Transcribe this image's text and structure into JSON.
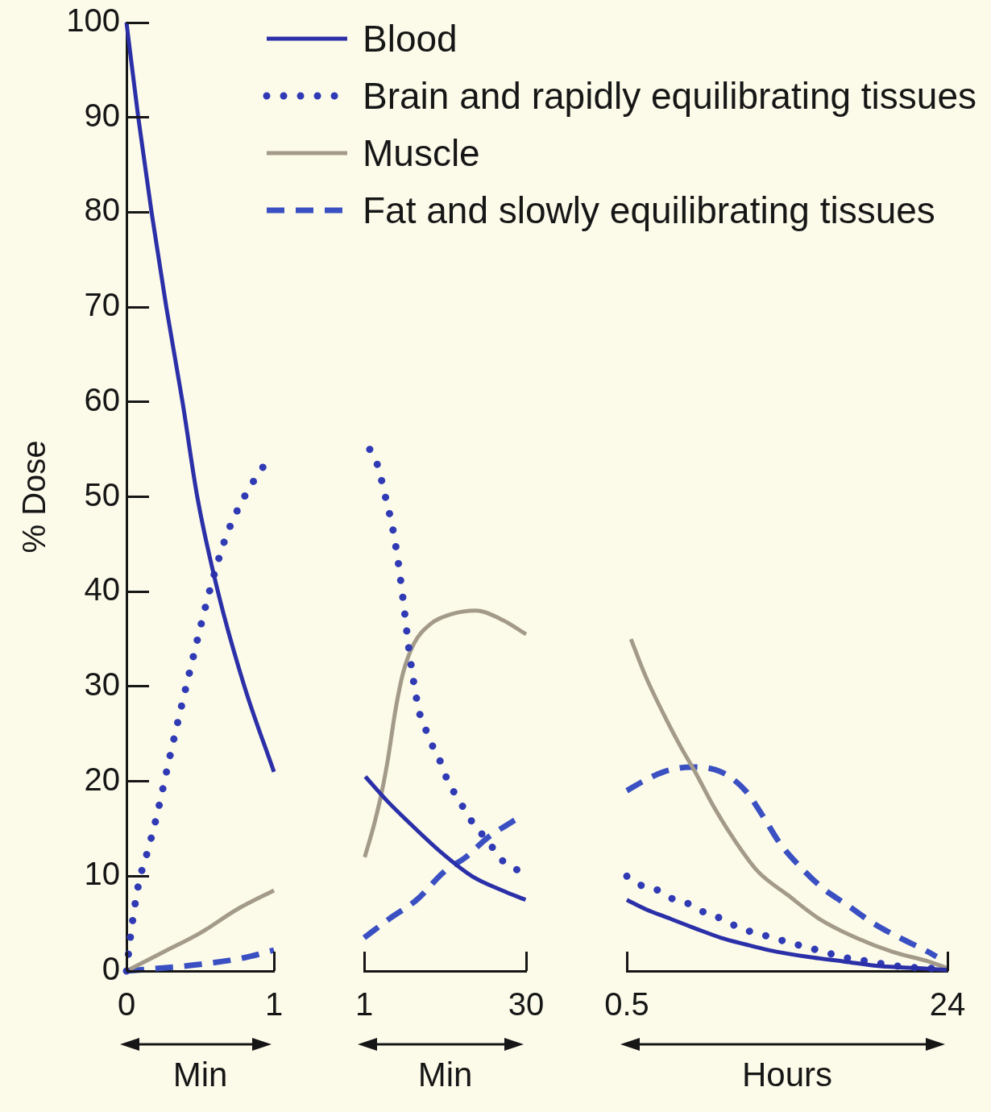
{
  "chart_data": [
    {
      "type": "line",
      "xlabel": "Min",
      "ylabel": "% Dose",
      "xlim": [
        0,
        1
      ],
      "xticks": [
        0,
        1
      ],
      "ylim": [
        0,
        100
      ],
      "yticks": [
        0,
        10,
        20,
        30,
        40,
        50,
        60,
        70,
        80,
        90,
        100
      ],
      "legend": "top right",
      "series": [
        {
          "name": "Blood",
          "color": "#2b2fa8",
          "line_style": "solid",
          "x": [
            0,
            0.08,
            0.17,
            0.27,
            0.38,
            0.48,
            0.62,
            0.8,
            1
          ],
          "values": [
            100,
            90,
            80,
            70,
            60,
            50,
            40,
            30,
            21
          ]
        },
        {
          "name": "Brain and rapidly equilibrating tissues",
          "color": "#2f3ab4",
          "line_style": "dotted",
          "x": [
            0,
            0.03,
            0.08,
            0.15,
            0.2,
            0.3,
            0.42,
            0.58,
            0.68,
            0.8,
            0.92,
            0.97
          ],
          "values": [
            0,
            4,
            9,
            13,
            16,
            23,
            31,
            41,
            46,
            50,
            53,
            54
          ]
        },
        {
          "name": "Muscle",
          "color": "#a39a8a",
          "line_style": "solid",
          "x": [
            0,
            0.25,
            0.5,
            0.75,
            1
          ],
          "values": [
            0,
            2,
            4,
            6.5,
            8.5
          ]
        },
        {
          "name": "Fat and slowly equilibrating tissues",
          "color": "#3a50c2",
          "line_style": "dashed",
          "x": [
            0,
            0.5,
            0.8,
            1
          ],
          "values": [
            0,
            0.7,
            1.4,
            2.2
          ]
        }
      ]
    },
    {
      "type": "line",
      "xlabel": "Min",
      "xlim": [
        1,
        30
      ],
      "xticks": [
        1,
        30
      ],
      "ylim": [
        0,
        100
      ],
      "tick_labels": "x",
      "series": [
        {
          "name": "Blood",
          "color": "#2b2fa8",
          "line_style": "solid",
          "x": [
            1.2,
            5,
            9.3,
            14.8,
            20.3,
            25.7,
            29.9
          ],
          "values": [
            20.5,
            18,
            15.5,
            12.5,
            10,
            8.5,
            7.5
          ]
        },
        {
          "name": "Brain and rapidly equilibrating tissues",
          "color": "#2f3ab4",
          "line_style": "dotted",
          "x": [
            2,
            3,
            4,
            5,
            6,
            7,
            8,
            9,
            10,
            11,
            12,
            13,
            14,
            15,
            16,
            18,
            20,
            22,
            24,
            26,
            28.9
          ],
          "values": [
            55,
            54,
            52,
            49.5,
            47,
            43.5,
            39,
            34,
            30,
            27,
            25.5,
            24,
            23,
            21.5,
            20,
            18,
            16,
            14.5,
            13,
            11.5,
            10.5
          ]
        },
        {
          "name": "Muscle",
          "color": "#a39a8a",
          "line_style": "solid",
          "x": [
            1.1,
            2.8,
            4.2,
            5.3,
            6.6,
            8,
            9.9,
            12.7,
            16.5,
            21,
            25.8,
            30
          ],
          "values": [
            12,
            15.5,
            19,
            22.5,
            27.5,
            31.5,
            34.5,
            36.5,
            37.6,
            38,
            37,
            35.5
          ]
        },
        {
          "name": "Fat and slowly equilibrating tissues",
          "color": "#3a50c2",
          "line_style": "dashed",
          "x": [
            1,
            5.5,
            10.4,
            15.4,
            19.2,
            23,
            28.2
          ],
          "values": [
            3.5,
            5.5,
            7.5,
            10.5,
            12,
            14,
            16
          ]
        }
      ]
    },
    {
      "type": "line",
      "xlabel": "Hours",
      "xlim": [
        0.5,
        24
      ],
      "xticks": [
        0.5,
        24
      ],
      "ylim": [
        0,
        100
      ],
      "tick_labels": "x",
      "series": [
        {
          "name": "Blood",
          "color": "#2b2fa8",
          "line_style": "solid",
          "x": [
            0.5,
            1.9,
            3.7,
            5.5,
            7.4,
            9.2,
            10.9,
            13.7,
            16.4,
            19.1,
            21.9,
            24
          ],
          "values": [
            7.5,
            6.5,
            5.5,
            4.5,
            3.5,
            2.8,
            2.2,
            1.5,
            1,
            0.5,
            0.3,
            0.1
          ]
        },
        {
          "name": "Brain and rapidly equilibrating tissues",
          "color": "#2f3ab4",
          "line_style": "dotted",
          "x": [
            0.5,
            1.6,
            2.8,
            4,
            5.2,
            6.4,
            7.5,
            8.8,
            10,
            11.2,
            12.4,
            13.7,
            15,
            16.2,
            17.4,
            18.7,
            19.9,
            21.2,
            22.6,
            24
          ],
          "values": [
            10,
            9,
            8.5,
            7.5,
            7,
            6,
            5.5,
            4.5,
            4,
            3.5,
            3,
            2.5,
            2,
            1.5,
            1.2,
            0.9,
            0.6,
            0.4,
            0.3,
            0.1
          ]
        },
        {
          "name": "Muscle",
          "color": "#a39a8a",
          "line_style": "solid",
          "x": [
            0.8,
            1.9,
            3.4,
            4.5,
            5.5,
            6.8,
            8.3,
            10.1,
            12.3,
            14.6,
            17.3,
            20,
            22.6,
            24
          ],
          "values": [
            35,
            31,
            26.5,
            23.5,
            21,
            17.5,
            14,
            10.5,
            8,
            5.5,
            3.5,
            2,
            1,
            0.3
          ]
        },
        {
          "name": "Fat and slowly equilibrating tissues",
          "color": "#3a50c2",
          "line_style": "dashed",
          "x": [
            0.5,
            1.7,
            3.2,
            5.2,
            7.4,
            9.2,
            10.4,
            11.7,
            13.2,
            14.8,
            16.6,
            18.6,
            20.5,
            22.6,
            23.2
          ],
          "values": [
            19,
            20,
            21,
            21.5,
            21,
            19,
            16.5,
            13.5,
            11,
            8.8,
            7,
            5,
            3.5,
            2,
            1.5
          ]
        }
      ]
    }
  ]
}
